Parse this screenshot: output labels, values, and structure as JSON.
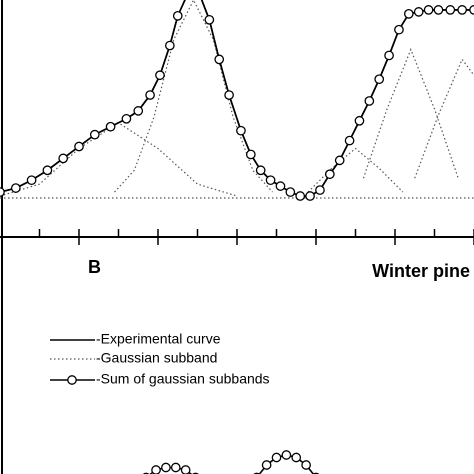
{
  "chart_data": [
    {
      "type": "line",
      "xlim": [
        0,
        12
      ],
      "ylim": [
        0,
        100
      ],
      "xticks": [
        1,
        2,
        3,
        4,
        5,
        6,
        7,
        8,
        9,
        10,
        11,
        12
      ],
      "x": [
        0,
        0.4,
        0.8,
        1.2,
        1.6,
        2.0,
        2.4,
        2.8,
        3.2,
        3.5,
        3.8,
        4.05,
        4.3,
        4.5,
        4.75,
        5.05,
        5.3,
        5.55,
        5.8,
        6.1,
        6.35,
        6.6,
        6.85,
        7.1,
        7.35,
        7.6,
        7.85,
        8.1,
        8.35,
        8.6,
        8.85,
        9.1,
        9.35,
        9.6,
        9.85,
        10.1,
        10.35,
        10.6,
        10.85,
        11.1,
        11.4,
        11.7,
        12
      ],
      "series": [
        {
          "name": "-Experimental curve",
          "style": "solid",
          "color": "#000000",
          "values": [
            3,
            5,
            9,
            14,
            20,
            26,
            32,
            36,
            40,
            44,
            52,
            62,
            77,
            92,
            103,
            103,
            90,
            70,
            52,
            34,
            22,
            14,
            9,
            6,
            3,
            1,
            1,
            4,
            12,
            19,
            29,
            39,
            49,
            60,
            72,
            85,
            93,
            94,
            95,
            95,
            95,
            95,
            95
          ]
        },
        {
          "name": "-Gaussian subband",
          "style": "dotted",
          "color": "#555555",
          "bands": [
            {
              "x": [
                0,
                1,
                2,
                3,
                4,
                5,
                6
              ],
              "values": [
                1,
                7,
                25,
                38,
                25,
                7,
                1
              ]
            },
            {
              "x": [
                2.9,
                3.4,
                3.9,
                4.4,
                4.9,
                5.4,
                5.9,
                6.4,
                6.9
              ],
              "values": [
                3,
                14,
                41,
                80,
                100,
                80,
                41,
                14,
                3
              ]
            },
            {
              "x": [
                7.8,
                8.4,
                9.0,
                9.6,
                10.2
              ],
              "values": [
                3,
                15,
                25,
                15,
                3
              ]
            },
            {
              "x": [
                9.2,
                9.8,
                10.4,
                11.0,
                11.6
              ],
              "values": [
                10,
                45,
                75,
                45,
                10
              ]
            },
            {
              "x": [
                10.5,
                11.1,
                11.7,
                12.0
              ],
              "values": [
                10,
                42,
                70,
                62
              ]
            }
          ]
        },
        {
          "name": "-Sum of gaussian subbands",
          "style": "circles",
          "color": "#000000",
          "values": [
            3,
            5,
            9,
            14,
            20,
            26,
            32,
            36,
            40,
            44,
            52,
            62,
            77,
            92,
            103,
            103,
            90,
            70,
            52,
            34,
            22,
            14,
            9,
            6,
            3,
            1,
            1,
            4,
            12,
            19,
            29,
            39,
            49,
            60,
            72,
            85,
            93,
            94,
            95,
            95,
            95,
            95,
            95
          ]
        }
      ]
    },
    {
      "type": "line",
      "label": "B",
      "title": "Winter pine",
      "xlim": [
        0,
        12
      ],
      "ylim": [
        0,
        100
      ],
      "x": [
        3.7,
        3.95,
        4.2,
        4.45,
        4.7,
        4.95,
        5.8,
        6.5,
        6.75,
        7.0,
        7.25,
        7.5,
        7.75,
        8.0,
        8.2
      ],
      "series": [
        {
          "style": "circles",
          "color": "#000000",
          "values": [
            33,
            36,
            37,
            37,
            36,
            33,
            null,
            33,
            38,
            41,
            42,
            41,
            38,
            33,
            28
          ]
        }
      ]
    }
  ]
}
